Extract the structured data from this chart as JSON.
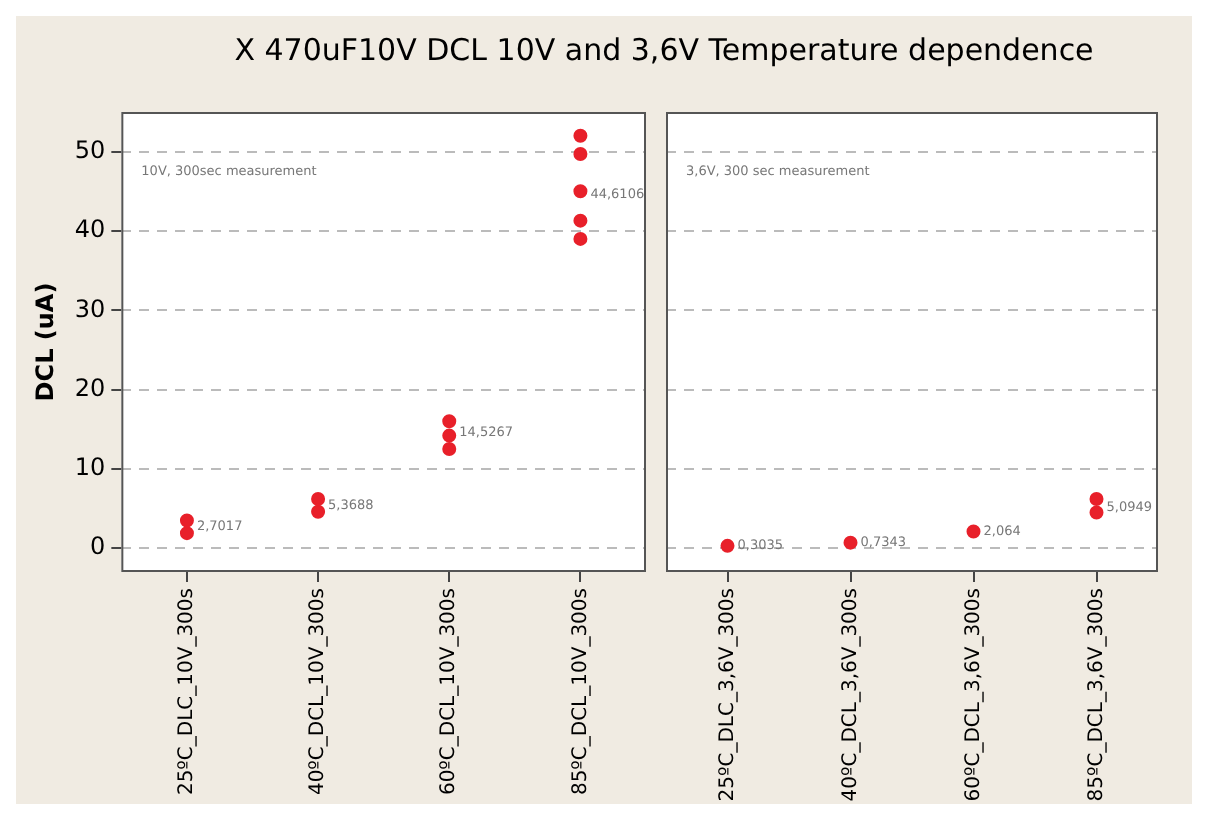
{
  "chart_data": [
    {
      "type": "scatter",
      "title": "X 470uF10V DCL 10V and 3,6V Temperature dependence",
      "ylabel": "DCL (uA)",
      "categories": [
        "25ºC_DLC_10V_300s",
        "40ºC_DCL_10V_300s",
        "60ºC_DCL_10V_300s",
        "85ºC_DCL_10V_300s"
      ],
      "series": [
        {
          "color": "#e8202a",
          "x": [
            "25ºC_DLC_10V_300s",
            "25ºC_DLC_10V_300s",
            "40ºC_DCL_10V_300s",
            "40ºC_DCL_10V_300s",
            "60ºC_DCL_10V_300s",
            "60ºC_DCL_10V_300s",
            "60ºC_DCL_10V_300s",
            "85ºC_DCL_10V_300s",
            "85ºC_DCL_10V_300s",
            "85ºC_DCL_10V_300s",
            "85ºC_DCL_10V_300s",
            "85ºC_DCL_10V_300s"
          ],
          "values": [
            1.9,
            3.5,
            4.6,
            6.2,
            12.5,
            14.2,
            16,
            52,
            49.7,
            45,
            41.3,
            39
          ]
        }
      ],
      "annotations": [
        "10V, 300sec measurement",
        {
          "text": "2,7017",
          "x": "25ºC_DLC_10V_300s",
          "y": 2.7017
        },
        {
          "text": "5,3688",
          "x": "40ºC_DCL_10V_300s",
          "y": 5.3688
        },
        {
          "text": "14,5267",
          "x": "60ºC_DCL_10V_300s",
          "y": 14.5267
        },
        {
          "text": "44,6106",
          "x": "85ºC_DCL_10V_300s",
          "y": 44.6106
        }
      ],
      "ylim": [
        -3,
        55
      ],
      "yticks": [
        0,
        10,
        20,
        30,
        40,
        50
      ],
      "grid": "y",
      "marker": "circle"
    },
    {
      "type": "scatter",
      "categories": [
        "25ºC_DLC_3,6V_300s",
        "40ºC_DCL_3,6V_300s",
        "60ºC_DCL_3,6V_300s",
        "85ºC_DCL_3,6V_300s"
      ],
      "series": [
        {
          "color": "#e8202a",
          "x": [
            "25ºC_DLC_3,6V_300s",
            "40ºC_DCL_3,6V_300s",
            "60ºC_DCL_3,6V_300s",
            "85ºC_DCL_3,6V_300s",
            "85ºC_DCL_3,6V_300s"
          ],
          "values": [
            0.3,
            0.7,
            2.1,
            4.5,
            6.2
          ]
        }
      ],
      "annotations": [
        "3,6V, 300 sec measurement",
        {
          "text": "0,3035",
          "x": "25ºC_DLC_3,6V_300s",
          "y": 0.3035
        },
        {
          "text": "0,7343",
          "x": "40ºC_DCL_3,6V_300s",
          "y": 0.7343
        },
        {
          "text": "2,064",
          "x": "60ºC_DCL_3,6V_300s",
          "y": 2.064
        },
        {
          "text": "5,0949",
          "x": "85ºC_DCL_3,6V_300s",
          "y": 5.0949
        }
      ],
      "ylim": [
        -3,
        55
      ],
      "yticks": [
        0,
        10,
        20,
        30,
        40,
        50
      ],
      "grid": "y",
      "marker": "circle",
      "tick_labels": "x"
    }
  ]
}
